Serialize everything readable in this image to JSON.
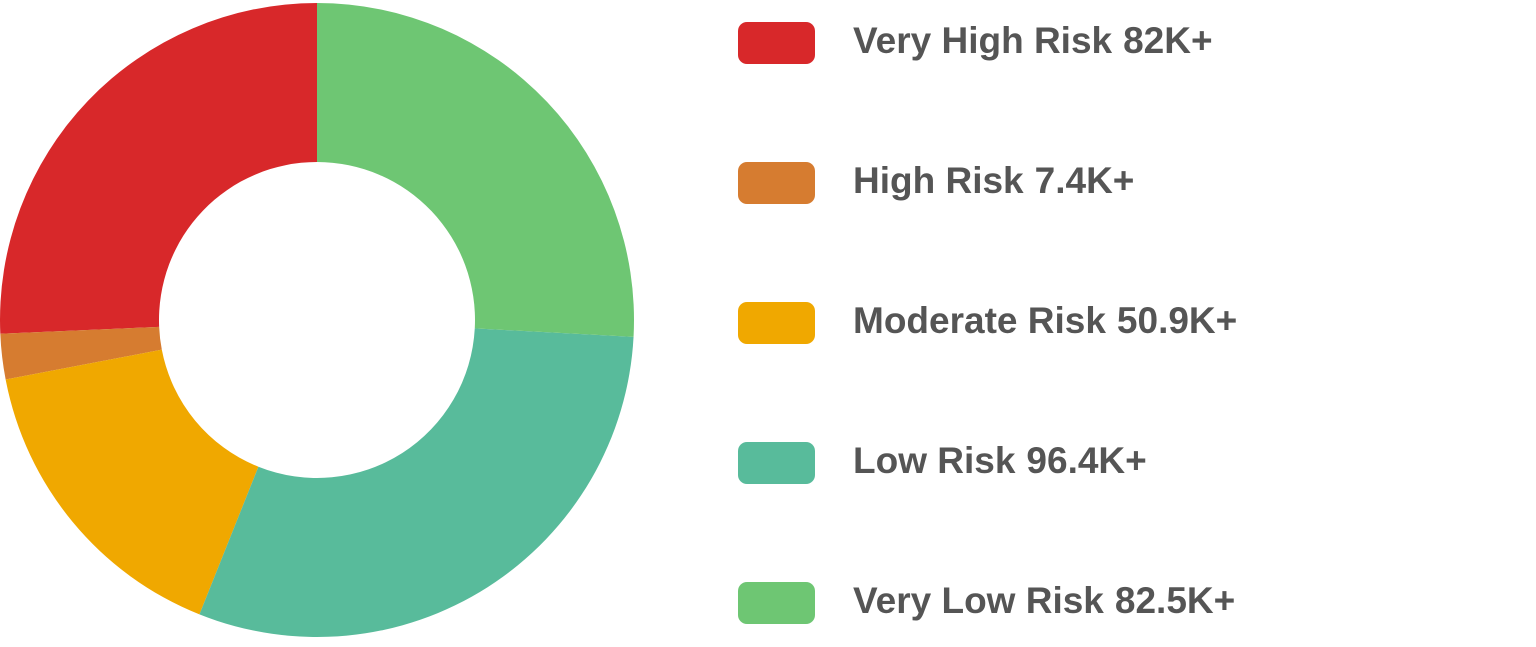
{
  "chart_data": {
    "type": "donut",
    "categories": [
      "Very High Risk",
      "High Risk",
      "Moderate Risk",
      "Low Risk",
      "Very Low Risk"
    ],
    "values": [
      82,
      7.4,
      50.9,
      96.4,
      82.5
    ],
    "value_labels": [
      "82K+",
      "7.4K+",
      "50.9K+",
      "96.4K+",
      "82.5K+"
    ],
    "colors": [
      "#d8282a",
      "#d67c30",
      "#f0a800",
      "#58bb9b",
      "#6ec673"
    ]
  }
}
